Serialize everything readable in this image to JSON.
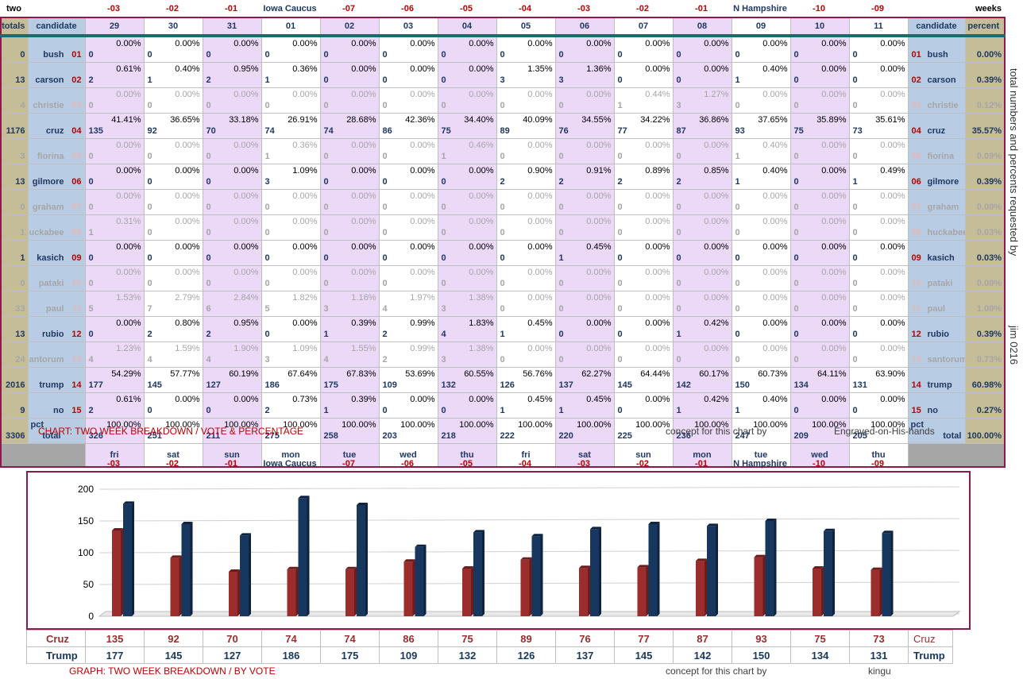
{
  "top_labels": {
    "left": "two",
    "right": "weeks"
  },
  "day_offsets": [
    "-03",
    "-02",
    "-01",
    "Iowa Caucus",
    "-07",
    "-06",
    "-05",
    "-04",
    "-03",
    "-02",
    "-01",
    "N Hampshire",
    "-10",
    "-09"
  ],
  "header": {
    "totals": "totals",
    "candidate": "candidate",
    "dates": [
      "29",
      "30",
      "31",
      "01",
      "02",
      "03",
      "04",
      "05",
      "06",
      "07",
      "08",
      "09",
      "10",
      "11"
    ],
    "candidate_right": "candidate",
    "percent": "percent"
  },
  "candidates": [
    {
      "name": "bush",
      "num": "01",
      "total": "0",
      "percent": "0.00%",
      "dim": false,
      "votes": [
        "0",
        "0",
        "0",
        "0",
        "0",
        "0",
        "0",
        "0",
        "0",
        "0",
        "0",
        "0",
        "0",
        "0"
      ],
      "pcts": [
        "0.00%",
        "0.00%",
        "0.00%",
        "0.00%",
        "0.00%",
        "0.00%",
        "0.00%",
        "0.00%",
        "0.00%",
        "0.00%",
        "0.00%",
        "0.00%",
        "0.00%",
        "0.00%"
      ]
    },
    {
      "name": "carson",
      "num": "02",
      "total": "13",
      "percent": "0.39%",
      "dim": false,
      "votes": [
        "2",
        "1",
        "2",
        "1",
        "0",
        "0",
        "0",
        "3",
        "3",
        "0",
        "0",
        "1",
        "0",
        "0"
      ],
      "pcts": [
        "0.61%",
        "0.40%",
        "0.95%",
        "0.36%",
        "0.00%",
        "0.00%",
        "0.00%",
        "1.35%",
        "1.36%",
        "0.00%",
        "0.00%",
        "0.40%",
        "0.00%",
        "0.00%"
      ]
    },
    {
      "name": "christie",
      "num": "03",
      "total": "4",
      "percent": "0.12%",
      "dim": true,
      "votes": [
        "0",
        "0",
        "0",
        "0",
        "0",
        "0",
        "0",
        "0",
        "0",
        "1",
        "3",
        "0",
        "0",
        "0"
      ],
      "pcts": [
        "0.00%",
        "0.00%",
        "0.00%",
        "0.00%",
        "0.00%",
        "0.00%",
        "0.00%",
        "0.00%",
        "0.00%",
        "0.44%",
        "1.27%",
        "0.00%",
        "0.00%",
        "0.00%"
      ]
    },
    {
      "name": "cruz",
      "num": "04",
      "total": "1176",
      "percent": "35.57%",
      "dim": false,
      "votes": [
        "135",
        "92",
        "70",
        "74",
        "74",
        "86",
        "75",
        "89",
        "76",
        "77",
        "87",
        "93",
        "75",
        "73"
      ],
      "pcts": [
        "41.41%",
        "36.65%",
        "33.18%",
        "26.91%",
        "28.68%",
        "42.36%",
        "34.40%",
        "40.09%",
        "34.55%",
        "34.22%",
        "36.86%",
        "37.65%",
        "35.89%",
        "35.61%"
      ]
    },
    {
      "name": "fiorina",
      "num": "05",
      "total": "3",
      "percent": "0.09%",
      "dim": true,
      "votes": [
        "0",
        "0",
        "0",
        "1",
        "0",
        "0",
        "1",
        "0",
        "0",
        "0",
        "0",
        "1",
        "0",
        "0"
      ],
      "pcts": [
        "0.00%",
        "0.00%",
        "0.00%",
        "0.36%",
        "0.00%",
        "0.00%",
        "0.46%",
        "0.00%",
        "0.00%",
        "0.00%",
        "0.00%",
        "0.40%",
        "0.00%",
        "0.00%"
      ]
    },
    {
      "name": "gilmore",
      "num": "06",
      "total": "13",
      "percent": "0.39%",
      "dim": false,
      "votes": [
        "0",
        "0",
        "0",
        "3",
        "0",
        "0",
        "0",
        "2",
        "2",
        "2",
        "2",
        "1",
        "0",
        "1"
      ],
      "pcts": [
        "0.00%",
        "0.00%",
        "0.00%",
        "1.09%",
        "0.00%",
        "0.00%",
        "0.00%",
        "0.90%",
        "0.91%",
        "0.89%",
        "0.85%",
        "0.40%",
        "0.00%",
        "0.49%"
      ]
    },
    {
      "name": "graham",
      "num": "07",
      "total": "0",
      "percent": "0.00%",
      "dim": true,
      "votes": [
        "0",
        "0",
        "0",
        "0",
        "0",
        "0",
        "0",
        "0",
        "0",
        "0",
        "0",
        "0",
        "0",
        "0"
      ],
      "pcts": [
        "0.00%",
        "0.00%",
        "0.00%",
        "0.00%",
        "0.00%",
        "0.00%",
        "0.00%",
        "0.00%",
        "0.00%",
        "0.00%",
        "0.00%",
        "0.00%",
        "0.00%",
        "0.00%"
      ]
    },
    {
      "name": "huckabee",
      "num": "08",
      "total": "1",
      "percent": "0.03%",
      "dim": true,
      "votes": [
        "1",
        "0",
        "0",
        "0",
        "0",
        "0",
        "0",
        "0",
        "0",
        "0",
        "0",
        "0",
        "0",
        "0"
      ],
      "pcts": [
        "0.31%",
        "0.00%",
        "0.00%",
        "0.00%",
        "0.00%",
        "0.00%",
        "0.00%",
        "0.00%",
        "0.00%",
        "0.00%",
        "0.00%",
        "0.00%",
        "0.00%",
        "0.00%"
      ]
    },
    {
      "name": "kasich",
      "num": "09",
      "total": "1",
      "percent": "0.03%",
      "dim": false,
      "votes": [
        "0",
        "0",
        "0",
        "0",
        "0",
        "0",
        "0",
        "0",
        "1",
        "0",
        "0",
        "0",
        "0",
        "0"
      ],
      "pcts": [
        "0.00%",
        "0.00%",
        "0.00%",
        "0.00%",
        "0.00%",
        "0.00%",
        "0.00%",
        "0.00%",
        "0.45%",
        "0.00%",
        "0.00%",
        "0.00%",
        "0.00%",
        "0.00%"
      ]
    },
    {
      "name": "pataki",
      "num": "10",
      "total": "0",
      "percent": "0.00%",
      "dim": true,
      "votes": [
        "0",
        "0",
        "0",
        "0",
        "0",
        "0",
        "0",
        "0",
        "0",
        "0",
        "0",
        "0",
        "0",
        "0"
      ],
      "pcts": [
        "0.00%",
        "0.00%",
        "0.00%",
        "0.00%",
        "0.00%",
        "0.00%",
        "0.00%",
        "0.00%",
        "0.00%",
        "0.00%",
        "0.00%",
        "0.00%",
        "0.00%",
        "0.00%"
      ]
    },
    {
      "name": "paul",
      "num": "11",
      "total": "33",
      "percent": "1.00%",
      "dim": true,
      "votes": [
        "5",
        "7",
        "6",
        "5",
        "3",
        "4",
        "3",
        "0",
        "0",
        "0",
        "0",
        "0",
        "0",
        "0"
      ],
      "pcts": [
        "1.53%",
        "2.79%",
        "2.84%",
        "1.82%",
        "1.16%",
        "1.97%",
        "1.38%",
        "0.00%",
        "0.00%",
        "0.00%",
        "0.00%",
        "0.00%",
        "0.00%",
        "0.00%"
      ]
    },
    {
      "name": "rubio",
      "num": "12",
      "total": "13",
      "percent": "0.39%",
      "dim": false,
      "votes": [
        "0",
        "2",
        "2",
        "0",
        "1",
        "2",
        "4",
        "1",
        "0",
        "0",
        "1",
        "0",
        "0",
        "0"
      ],
      "pcts": [
        "0.00%",
        "0.80%",
        "0.95%",
        "0.00%",
        "0.39%",
        "0.99%",
        "1.83%",
        "0.45%",
        "0.00%",
        "0.00%",
        "0.42%",
        "0.00%",
        "0.00%",
        "0.00%"
      ]
    },
    {
      "name": "santorum",
      "num": "13",
      "total": "24",
      "percent": "0.73%",
      "dim": true,
      "votes": [
        "4",
        "4",
        "4",
        "3",
        "4",
        "2",
        "3",
        "0",
        "0",
        "0",
        "0",
        "0",
        "0",
        "0"
      ],
      "pcts": [
        "1.23%",
        "1.59%",
        "1.90%",
        "1.09%",
        "1.55%",
        "0.99%",
        "1.38%",
        "0.00%",
        "0.00%",
        "0.00%",
        "0.00%",
        "0.00%",
        "0.00%",
        "0.00%"
      ]
    },
    {
      "name": "trump",
      "num": "14",
      "total": "2016",
      "percent": "60.98%",
      "dim": false,
      "votes": [
        "177",
        "145",
        "127",
        "186",
        "175",
        "109",
        "132",
        "126",
        "137",
        "145",
        "142",
        "150",
        "134",
        "131"
      ],
      "pcts": [
        "54.29%",
        "57.77%",
        "60.19%",
        "67.64%",
        "67.83%",
        "53.69%",
        "60.55%",
        "56.76%",
        "62.27%",
        "64.44%",
        "60.17%",
        "60.73%",
        "64.11%",
        "63.90%"
      ]
    },
    {
      "name": "no",
      "num": "15",
      "total": "9",
      "percent": "0.27%",
      "dim": false,
      "votes": [
        "2",
        "0",
        "0",
        "2",
        "1",
        "0",
        "0",
        "1",
        "1",
        "0",
        "1",
        "1",
        "0",
        "0"
      ],
      "pcts": [
        "0.61%",
        "0.00%",
        "0.00%",
        "0.73%",
        "0.39%",
        "0.00%",
        "0.00%",
        "0.45%",
        "0.45%",
        "0.00%",
        "0.42%",
        "0.40%",
        "0.00%",
        "0.00%"
      ]
    }
  ],
  "total_row": {
    "grand_total": "3306",
    "label": "total",
    "pct_label": "pct",
    "votes": [
      "326",
      "251",
      "211",
      "275",
      "258",
      "203",
      "218",
      "222",
      "220",
      "225",
      "236",
      "247",
      "209",
      "205"
    ],
    "pcts": [
      "100.00%",
      "100.00%",
      "100.00%",
      "100.00%",
      "100.00%",
      "100.00%",
      "100.00%",
      "100.00%",
      "100.00%",
      "100.00%",
      "100.00%",
      "100.00%",
      "100.00%",
      "100.00%"
    ],
    "right_label": "pct",
    "right_total": "total",
    "right_percent": "100.00%"
  },
  "days": [
    "fri",
    "sat",
    "sun",
    "mon",
    "tue",
    "wed",
    "thu",
    "fri",
    "sat",
    "sun",
    "mon",
    "tue",
    "wed",
    "thu"
  ],
  "captions": {
    "chart_title": "CHART: TWO WEEK BREAKDOWN / VOTE & PERCENTAGE",
    "concept1": "concept for this chart by",
    "author1": "Engraved-on-His-hands",
    "graph_title": "GRAPH: TWO WEEK BREAKDOWN / BY VOTE",
    "concept2": "concept for this chart by",
    "author2": "kingu",
    "side1": "total numbers and percents requested by",
    "side2": "jim 0216"
  },
  "colors": {
    "cruz": "#9b2d2d",
    "trump": "#17375e",
    "red": "#c00000",
    "navy": "#1f3864"
  },
  "chart_data": {
    "type": "bar",
    "categories": [
      "-03",
      "-02",
      "-01",
      "Iowa Caucus",
      "-07",
      "-06",
      "-05",
      "-04",
      "-03",
      "-02",
      "-01",
      "N Hampshire",
      "-10",
      "-09"
    ],
    "series": [
      {
        "name": "Cruz",
        "values": [
          135,
          92,
          70,
          74,
          74,
          86,
          75,
          89,
          76,
          77,
          87,
          93,
          75,
          73
        ]
      },
      {
        "name": "Trump",
        "values": [
          177,
          145,
          127,
          186,
          175,
          109,
          132,
          126,
          137,
          145,
          142,
          150,
          134,
          131
        ]
      }
    ],
    "yticks": [
      "0",
      "50",
      "100",
      "150",
      "200"
    ],
    "ylim": [
      0,
      200
    ],
    "grid": true
  }
}
